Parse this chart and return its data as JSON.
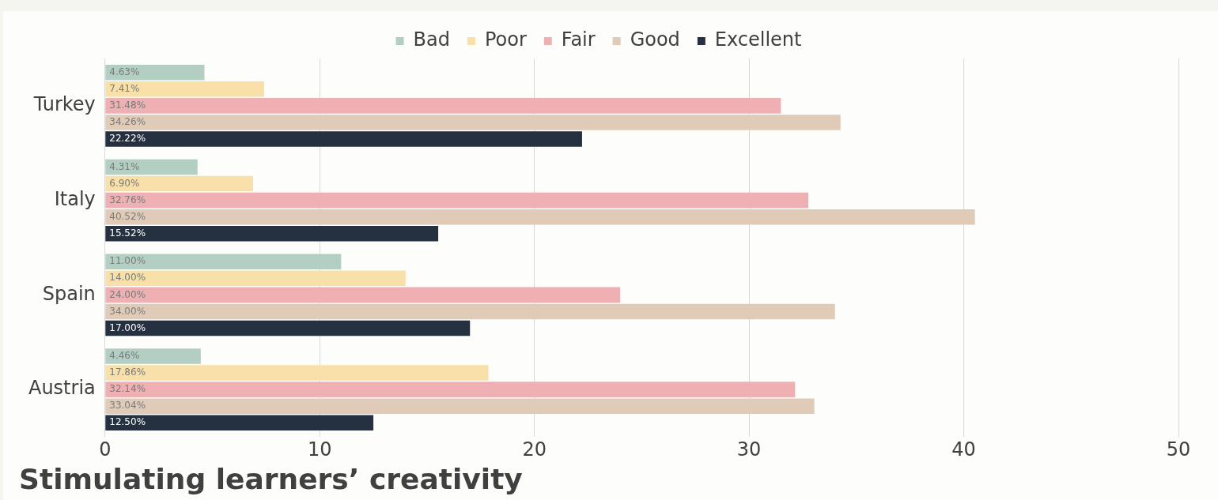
{
  "chart_data": {
    "type": "bar",
    "orientation": "horizontal",
    "title": "Stimulating learners’ creativity",
    "categories": [
      "Turkey",
      "Italy",
      "Spain",
      "Austria"
    ],
    "series": [
      {
        "name": "Bad",
        "color": "#b3cfc4",
        "values": [
          4.63,
          4.31,
          11.0,
          4.46
        ],
        "value_labels": [
          "4.63%",
          "4.31%",
          "11.00%",
          "4.46%"
        ]
      },
      {
        "name": "Poor",
        "color": "#f8e0a8",
        "values": [
          7.41,
          6.9,
          14.0,
          17.86
        ],
        "value_labels": [
          "7.41%",
          "6.90%",
          "14.00%",
          "17.86%"
        ]
      },
      {
        "name": "Fair",
        "color": "#eeb0b2",
        "values": [
          31.48,
          32.76,
          24.0,
          32.14
        ],
        "value_labels": [
          "31.48%",
          "32.76%",
          "24.00%",
          "32.14%"
        ]
      },
      {
        "name": "Good",
        "color": "#dfcbb8",
        "values": [
          34.26,
          40.52,
          34.0,
          33.04
        ],
        "value_labels": [
          "34.26%",
          "40.52%",
          "34.00%",
          "33.04%"
        ]
      },
      {
        "name": "Excellent",
        "color": "#253141",
        "values": [
          22.22,
          15.52,
          17.0,
          12.5
        ],
        "value_labels": [
          "22.22%",
          "15.52%",
          "17.00%",
          "12.50%"
        ]
      }
    ],
    "xlim": [
      0,
      50
    ],
    "xticks": [
      0,
      10,
      20,
      30,
      40,
      50
    ],
    "grid": "x",
    "legend": "top"
  }
}
